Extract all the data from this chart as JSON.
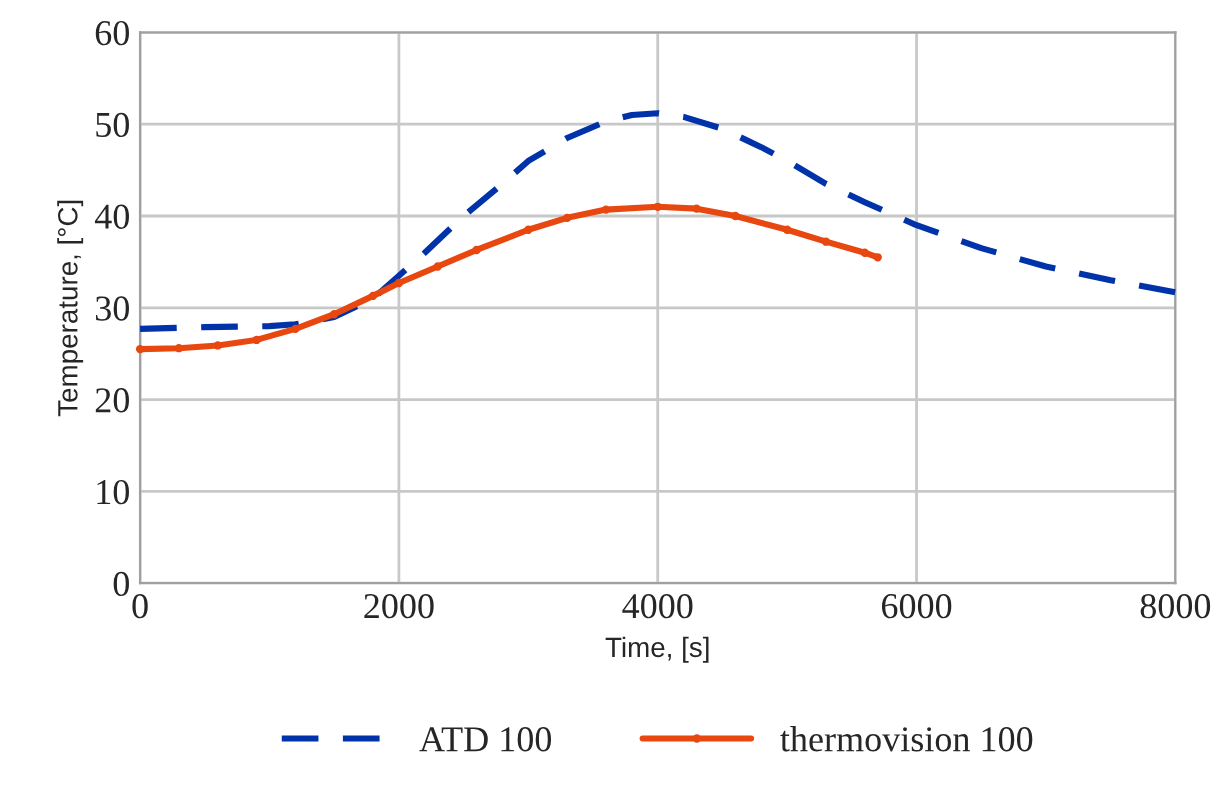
{
  "chart_data": {
    "type": "line",
    "xlabel": "Time, [s]",
    "ylabel": "Temperature, [°C]",
    "xlim": [
      0,
      8000
    ],
    "xticks": [
      0,
      2000,
      4000,
      6000,
      8000
    ],
    "ylim": [
      0,
      60
    ],
    "yticks": [
      0,
      10,
      20,
      30,
      40,
      50,
      60
    ],
    "grid": true,
    "legend": "bottom",
    "series": [
      {
        "name": "ATD 100",
        "color": "#0033aa",
        "line_style": "dashed",
        "marker": "none",
        "x": [
          0,
          500,
          1000,
          1200,
          1500,
          1800,
          2000,
          2200,
          2500,
          2800,
          3000,
          3300,
          3600,
          3800,
          4000,
          4200,
          4500,
          4800,
          5000,
          5300,
          5600,
          6000,
          6500,
          7000,
          7500,
          8000
        ],
        "values": [
          27.7,
          27.9,
          28,
          28.2,
          29,
          31,
          33.5,
          36,
          40,
          43.5,
          46,
          48.5,
          50.3,
          51,
          51.2,
          50.8,
          49.5,
          47.5,
          46,
          43.5,
          41.5,
          39,
          36.5,
          34.5,
          33,
          31.7
        ]
      },
      {
        "name": "thermovision 100",
        "color": "#e8470f",
        "line_style": "solid",
        "marker": "circle",
        "x": [
          0,
          300,
          600,
          900,
          1200,
          1500,
          1800,
          2000,
          2300,
          2600,
          3000,
          3300,
          3600,
          4000,
          4300,
          4600,
          5000,
          5300,
          5600,
          5700
        ],
        "values": [
          25.5,
          25.6,
          25.9,
          26.5,
          27.7,
          29.3,
          31.3,
          32.7,
          34.5,
          36.3,
          38.5,
          39.8,
          40.7,
          41,
          40.8,
          40,
          38.5,
          37.2,
          36,
          35.5
        ]
      }
    ]
  }
}
